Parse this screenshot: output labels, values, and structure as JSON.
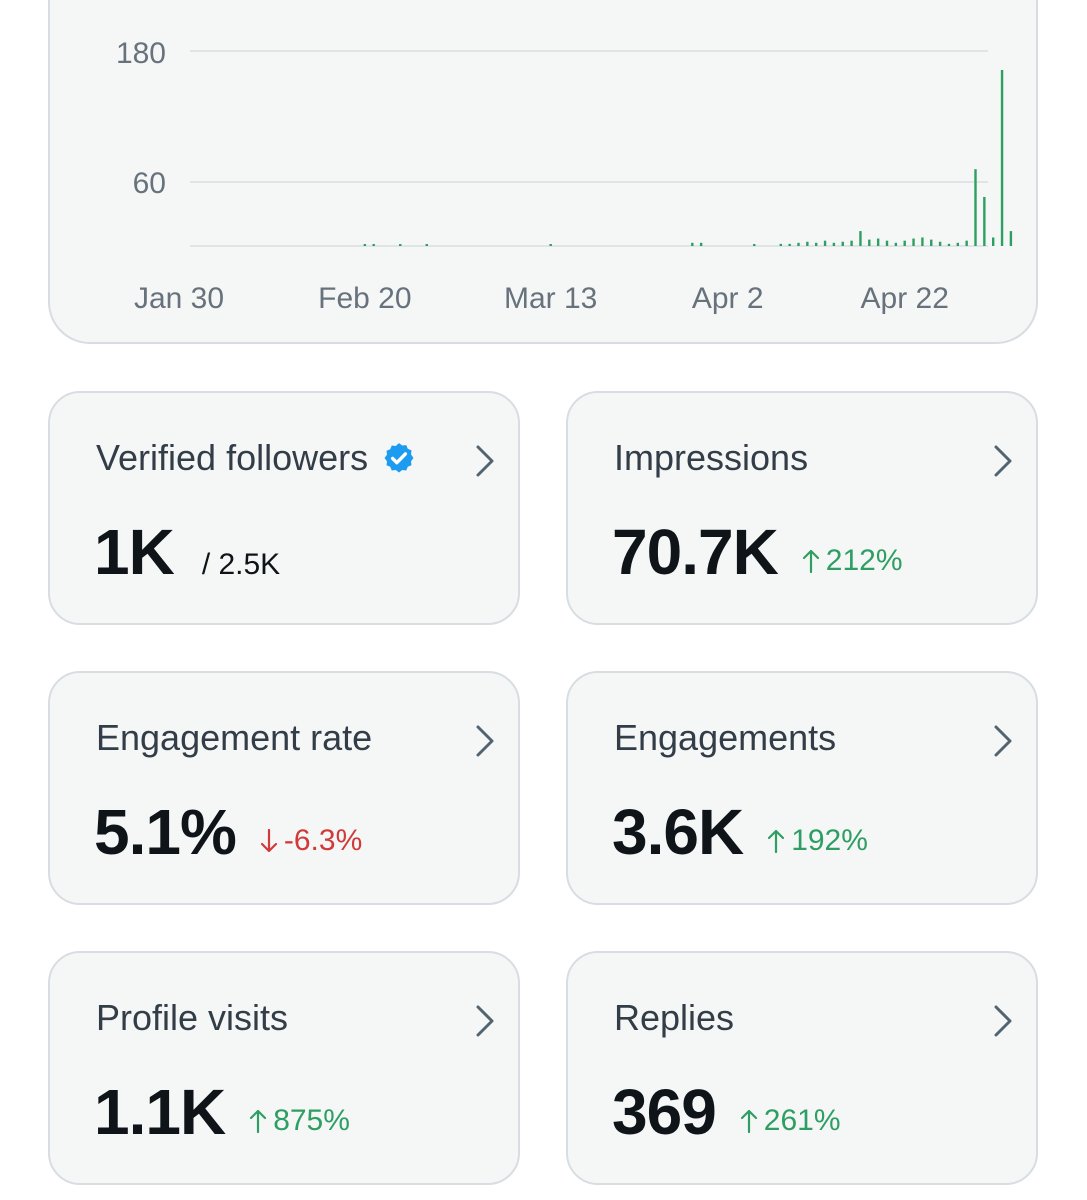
{
  "chart_data": {
    "type": "bar",
    "y_ticks": [
      "180",
      "60"
    ],
    "x_tick_labels": [
      "Jan 30",
      "Feb 20",
      "Mar 13",
      "Apr 2",
      "Apr 22"
    ],
    "x_tick_offsets_days": [
      0,
      21,
      42,
      62,
      82
    ],
    "ylim": [
      0,
      180
    ],
    "grid": true,
    "color": "#2f9e63",
    "bars": [
      {
        "day": 21,
        "value": 1
      },
      {
        "day": 22,
        "value": 1
      },
      {
        "day": 25,
        "value": 1
      },
      {
        "day": 28,
        "value": 1
      },
      {
        "day": 42,
        "value": 1
      },
      {
        "day": 58,
        "value": 3
      },
      {
        "day": 59,
        "value": 3
      },
      {
        "day": 65,
        "value": 1
      },
      {
        "day": 68,
        "value": 2
      },
      {
        "day": 69,
        "value": 2
      },
      {
        "day": 70,
        "value": 3
      },
      {
        "day": 71,
        "value": 4
      },
      {
        "day": 72,
        "value": 3
      },
      {
        "day": 73,
        "value": 5
      },
      {
        "day": 74,
        "value": 3
      },
      {
        "day": 75,
        "value": 4
      },
      {
        "day": 76,
        "value": 5
      },
      {
        "day": 77,
        "value": 14
      },
      {
        "day": 78,
        "value": 6
      },
      {
        "day": 79,
        "value": 7
      },
      {
        "day": 80,
        "value": 5
      },
      {
        "day": 81,
        "value": 3
      },
      {
        "day": 82,
        "value": 5
      },
      {
        "day": 83,
        "value": 7
      },
      {
        "day": 84,
        "value": 8
      },
      {
        "day": 85,
        "value": 6
      },
      {
        "day": 86,
        "value": 4
      },
      {
        "day": 87,
        "value": 2
      },
      {
        "day": 88,
        "value": 3
      },
      {
        "day": 89,
        "value": 5
      },
      {
        "day": 90,
        "value": 72
      },
      {
        "day": 91,
        "value": 46
      },
      {
        "day": 92,
        "value": 8
      },
      {
        "day": 93,
        "value": 165
      },
      {
        "day": 94,
        "value": 14
      }
    ]
  },
  "metrics": [
    {
      "title": "Verified followers",
      "value": "1K",
      "sub": "/ 2.5K",
      "verified": true
    },
    {
      "title": "Impressions",
      "value": "70.7K",
      "delta": "212%",
      "direction": "up"
    },
    {
      "title": "Engagement rate",
      "value": "5.1%",
      "delta": "-6.3%",
      "direction": "down"
    },
    {
      "title": "Engagements",
      "value": "3.6K",
      "delta": "192%",
      "direction": "up"
    },
    {
      "title": "Profile visits",
      "value": "1.1K",
      "delta": "875%",
      "direction": "up"
    },
    {
      "title": "Replies",
      "value": "369",
      "delta": "261%",
      "direction": "up"
    }
  ],
  "icons": {
    "verified": "verified-badge-icon",
    "chevron": "chevron-right-icon",
    "up": "arrow-up-icon",
    "down": "arrow-down-icon"
  },
  "colors": {
    "up": "#2f9e63",
    "down": "#d23a3a",
    "verified": "#1d9bf0"
  }
}
